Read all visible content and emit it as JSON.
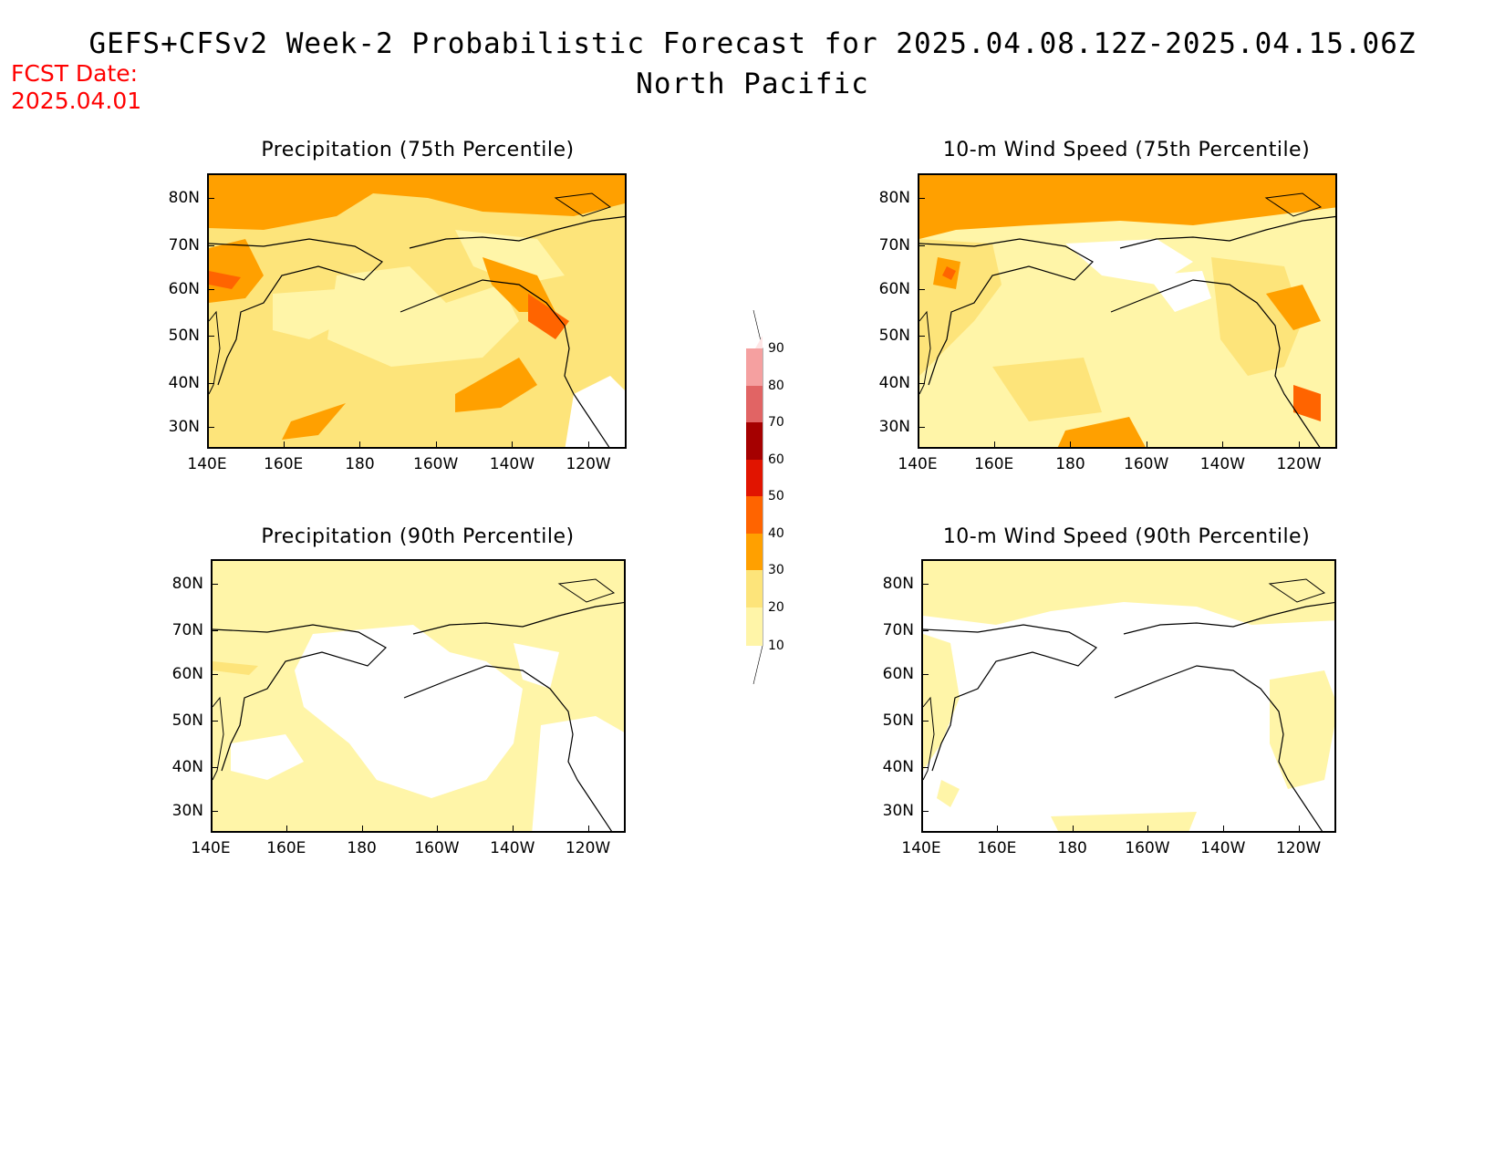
{
  "header": {
    "title": "GEFS+CFSv2 Week-2 Probabilistic Forecast for 2025.04.08.12Z-2025.04.15.06Z",
    "region": "North Pacific",
    "fcst_label": "FCST Date:",
    "fcst_date": "2025.04.01"
  },
  "axes": {
    "lat_labels": [
      "80N",
      "70N",
      "60N",
      "50N",
      "40N",
      "30N"
    ],
    "lon_labels": [
      "140E",
      "160E",
      "180",
      "160W",
      "140W",
      "120W"
    ]
  },
  "panels": [
    {
      "title": "Precipitation (75th Percentile)"
    },
    {
      "title": "10-m Wind Speed (75th Percentile)"
    },
    {
      "title": "Precipitation (90th Percentile)"
    },
    {
      "title": "10-m Wind Speed (90th Percentile)"
    }
  ],
  "colorbar": {
    "levels": [
      "90",
      "80",
      "70",
      "60",
      "50",
      "40",
      "30",
      "20",
      "10"
    ],
    "colors": {
      "10-20": "#fff5a8",
      "20-30": "#fde47a",
      "30-40": "#ffa000",
      "40-50": "#ff6400",
      "50-60": "#e11400",
      "60-70": "#a50000",
      "70-80": "#e16464",
      "80-90": "#f5a0a0",
      "90-100": "#ffe6e6"
    }
  }
}
